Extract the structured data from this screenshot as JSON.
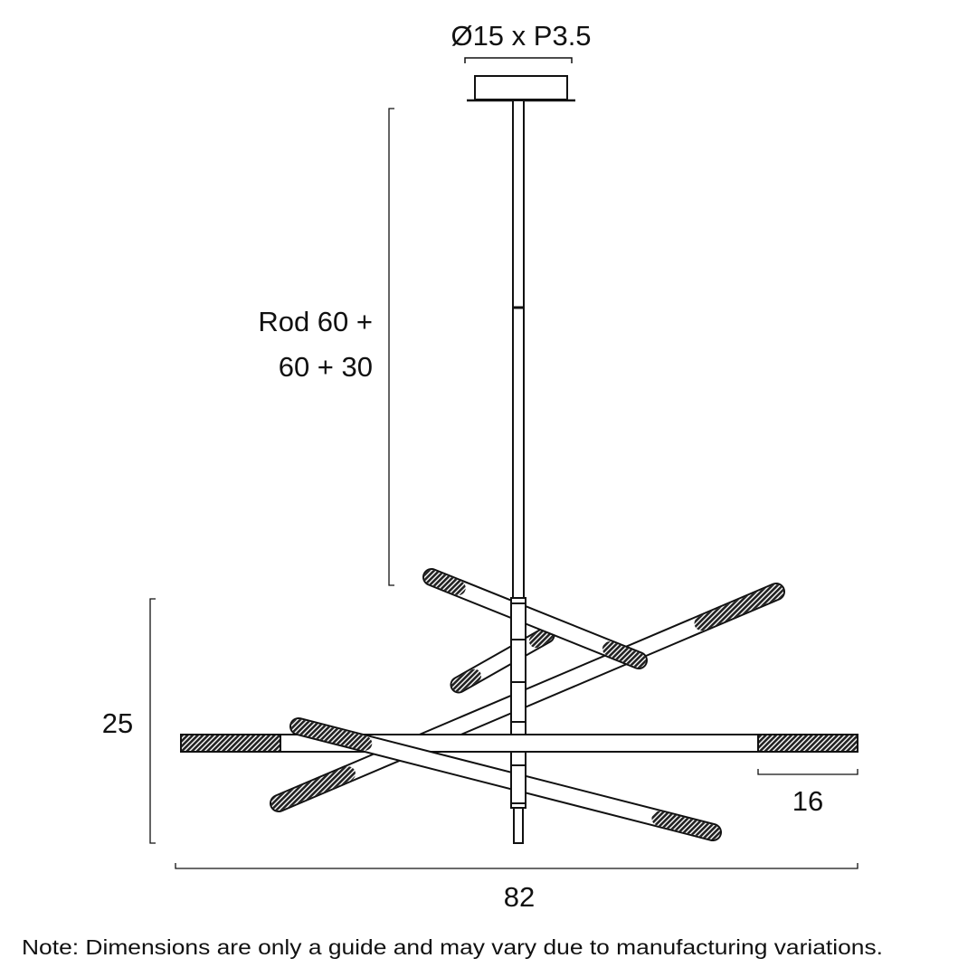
{
  "labels": {
    "canopy_dimension": "Ø15 x P3.5",
    "rod_line1": "Rod 60 +",
    "rod_line2": "60 + 30",
    "height": "25",
    "tube_length": "16",
    "width": "82"
  },
  "note": "Note: Dimensions are only a guide and may vary due to manufacturing variations.",
  "colors": {
    "line": "#111111",
    "background": "#ffffff"
  }
}
